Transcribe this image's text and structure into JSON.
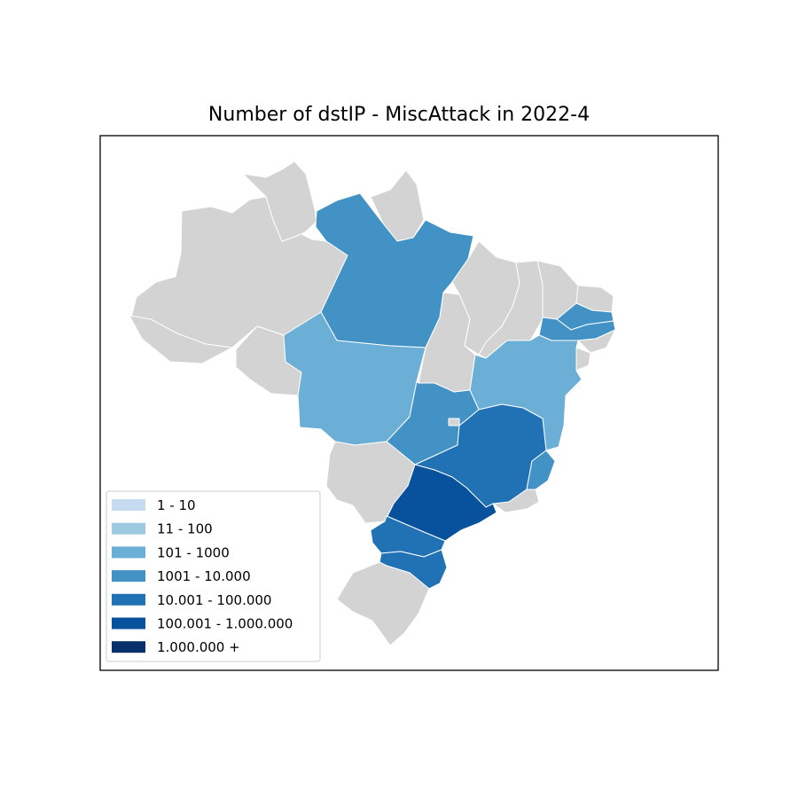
{
  "title": "Number of dstIP - MiscAttack in 2022-4",
  "colors": {
    "no_data": "#d3d3d3",
    "frame": "#000000",
    "border": "#ffffff"
  },
  "legend": {
    "placement": "lower-left",
    "items": [
      {
        "label": "1 - 10",
        "color": "#c6dbef"
      },
      {
        "label": "11 - 100",
        "color": "#9ecae1"
      },
      {
        "label": "101 - 1000",
        "color": "#6baed6"
      },
      {
        "label": "1001 - 10.000",
        "color": "#4292c6"
      },
      {
        "label": "10.001 - 100.000",
        "color": "#2171b5"
      },
      {
        "label": "100.001 - 1.000.000",
        "color": "#08519c"
      },
      {
        "label": "1.000.000 +",
        "color": "#08306b"
      }
    ]
  },
  "regions": [
    {
      "id": "AM",
      "class": "no-data"
    },
    {
      "id": "RR",
      "class": "no-data"
    },
    {
      "id": "AP",
      "class": "no-data"
    },
    {
      "id": "AC",
      "class": "no-data"
    },
    {
      "id": "RO",
      "class": "no-data"
    },
    {
      "id": "PA",
      "class": "1001 - 10.000"
    },
    {
      "id": "MT",
      "class": "101 - 1000"
    },
    {
      "id": "TO",
      "class": "no-data"
    },
    {
      "id": "MA",
      "class": "no-data"
    },
    {
      "id": "PI",
      "class": "no-data"
    },
    {
      "id": "CE",
      "class": "no-data"
    },
    {
      "id": "RN",
      "class": "no-data"
    },
    {
      "id": "PB",
      "class": "1001 - 10.000"
    },
    {
      "id": "PE",
      "class": "1001 - 10.000"
    },
    {
      "id": "AL",
      "class": "no-data"
    },
    {
      "id": "SE",
      "class": "no-data"
    },
    {
      "id": "BA",
      "class": "101 - 1000"
    },
    {
      "id": "GO",
      "class": "1001 - 10.000"
    },
    {
      "id": "DF",
      "class": "no-data"
    },
    {
      "id": "MS",
      "class": "no-data"
    },
    {
      "id": "MG",
      "class": "10.001 - 100.000"
    },
    {
      "id": "ES",
      "class": "1001 - 10.000"
    },
    {
      "id": "RJ",
      "class": "no-data"
    },
    {
      "id": "SP",
      "class": "100.001 - 1.000.000"
    },
    {
      "id": "PR",
      "class": "10.001 - 100.000"
    },
    {
      "id": "SC",
      "class": "10.001 - 100.000"
    },
    {
      "id": "RS",
      "class": "no-data"
    }
  ]
}
